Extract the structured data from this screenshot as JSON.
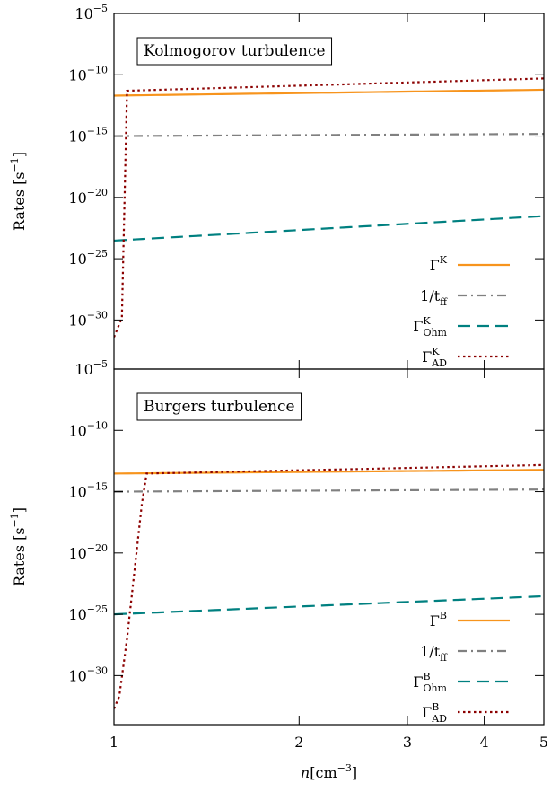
{
  "chart_data": [
    {
      "type": "line",
      "annotation": "Kolmogorov turbulence",
      "xlabel": "",
      "ylabel": "Rates [s⁻¹]",
      "xscale": "log",
      "yscale": "log",
      "xlim": [
        1,
        5
      ],
      "ylim": [
        1e-34,
        1e-05
      ],
      "x_ticks": [
        1,
        2,
        3,
        4,
        5
      ],
      "x_tick_labels": [
        "",
        "",
        "",
        "",
        ""
      ],
      "y_ticks": [
        1e-30,
        1e-25,
        1e-20,
        1e-15,
        1e-10,
        1e-05
      ],
      "y_tick_labels": [
        {
          "base": "10",
          "exp": "−30"
        },
        {
          "base": "10",
          "exp": "−25"
        },
        {
          "base": "10",
          "exp": "−20"
        },
        {
          "base": "10",
          "exp": "−15"
        },
        {
          "base": "10",
          "exp": "−10"
        },
        {
          "base": "10",
          "exp": "−5"
        }
      ],
      "legend_position": "lower-right",
      "series": [
        {
          "name": "Γ",
          "sup": "K",
          "sub": "",
          "color": "#f7941d",
          "dash": "solid",
          "x": [
            1,
            5
          ],
          "y": [
            2e-12,
            6e-12
          ]
        },
        {
          "name": "1/t",
          "sup": "",
          "sub": "ff",
          "color": "#808080",
          "dash": "dashdot",
          "x": [
            1,
            5
          ],
          "y": [
            1e-15,
            1.5e-15
          ]
        },
        {
          "name": "Γ",
          "sup": "K",
          "sub": "Ohm",
          "color": "#008080",
          "dash": "dashed",
          "x": [
            1,
            5
          ],
          "y": [
            3e-24,
            3e-22
          ]
        },
        {
          "name": "Γ",
          "sup": "K",
          "sub": "AD",
          "color": "#8b0000",
          "dash": "dotted",
          "x": [
            1,
            1.03,
            1.05,
            5
          ],
          "y": [
            4e-32,
            1.5e-30,
            5e-12,
            5e-11
          ]
        }
      ]
    },
    {
      "type": "line",
      "annotation": "Burgers turbulence",
      "xlabel": "n[cm⁻³]",
      "ylabel": "Rates [s⁻¹]",
      "xscale": "log",
      "yscale": "log",
      "xlim": [
        1,
        5
      ],
      "ylim": [
        1e-34,
        1e-05
      ],
      "x_ticks": [
        1,
        2,
        3,
        4,
        5
      ],
      "x_tick_labels": [
        "1",
        "2",
        "3",
        "4",
        "5"
      ],
      "y_ticks": [
        1e-30,
        1e-25,
        1e-20,
        1e-15,
        1e-10,
        1e-05
      ],
      "y_tick_labels": [
        {
          "base": "10",
          "exp": "−30"
        },
        {
          "base": "10",
          "exp": "−25"
        },
        {
          "base": "10",
          "exp": "−20"
        },
        {
          "base": "10",
          "exp": "−15"
        },
        {
          "base": "10",
          "exp": "−10"
        },
        {
          "base": "10",
          "exp": "−5"
        }
      ],
      "legend_position": "lower-right",
      "series": [
        {
          "name": "Γ",
          "sup": "B",
          "sub": "",
          "color": "#f7941d",
          "dash": "solid",
          "x": [
            1,
            5
          ],
          "y": [
            3e-14,
            6e-14
          ]
        },
        {
          "name": "1/t",
          "sup": "",
          "sub": "ff",
          "color": "#808080",
          "dash": "dashdot",
          "x": [
            1,
            5
          ],
          "y": [
            1e-15,
            1.5e-15
          ]
        },
        {
          "name": "Γ",
          "sup": "B",
          "sub": "Ohm",
          "color": "#008080",
          "dash": "dashed",
          "x": [
            1,
            5
          ],
          "y": [
            1e-25,
            3e-24
          ]
        },
        {
          "name": "Γ",
          "sup": "B",
          "sub": "AD",
          "color": "#8b0000",
          "dash": "dotted",
          "x": [
            1,
            1.02,
            1.05,
            1.11,
            1.13,
            5
          ],
          "y": [
            2e-33,
            2e-32,
            1e-27,
            1e-16,
            3e-14,
            1.5e-13
          ]
        }
      ]
    }
  ]
}
